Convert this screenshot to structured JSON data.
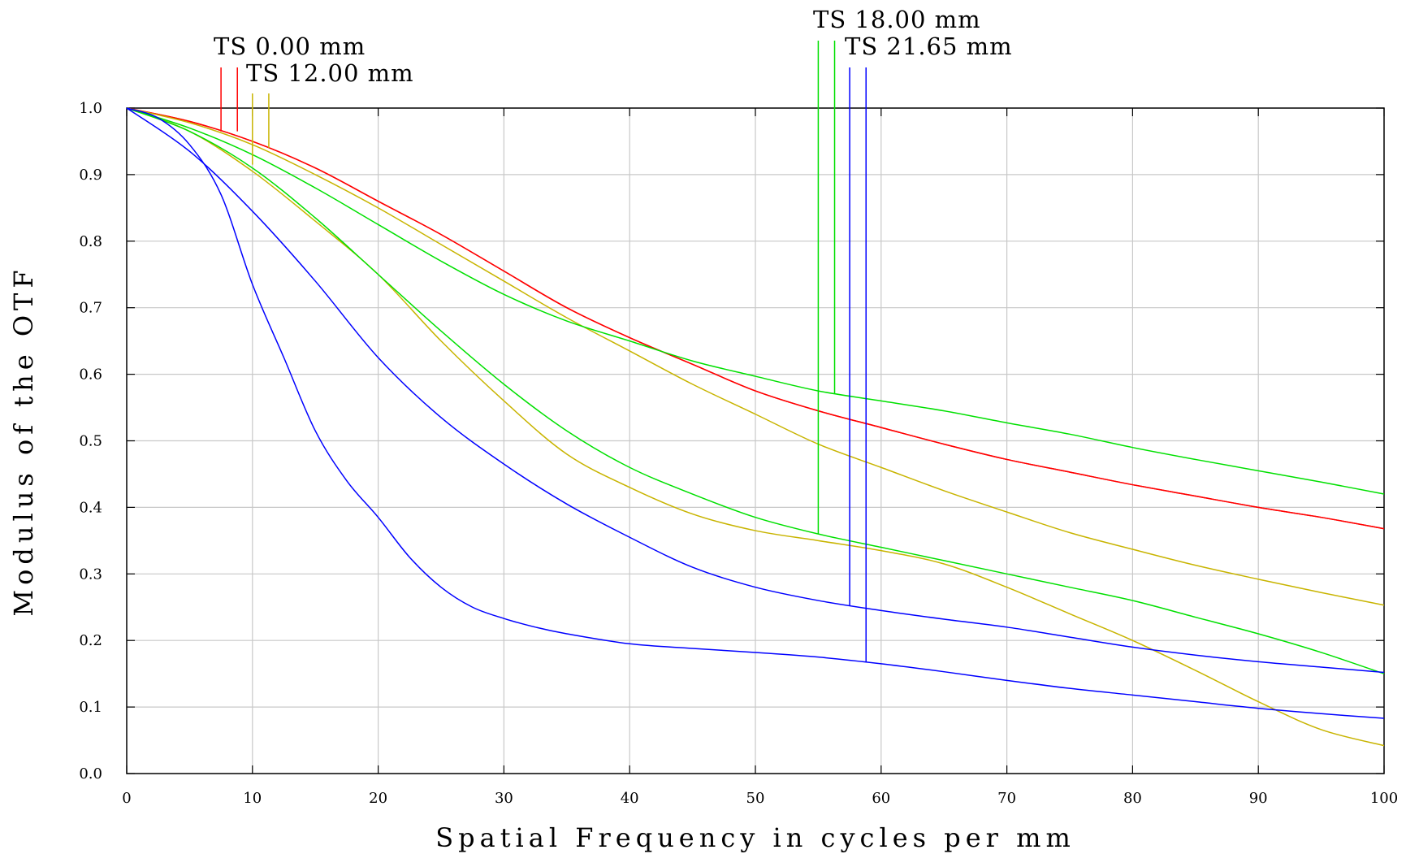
{
  "chart_data": {
    "type": "line",
    "title": "",
    "xlabel": "Spatial Frequency in cycles per mm",
    "ylabel": "Modulus of the OTF",
    "xlim": [
      0,
      100
    ],
    "ylim": [
      0,
      1
    ],
    "grid": true,
    "x_ticks": [
      "0",
      "10",
      "20",
      "30",
      "40",
      "50",
      "60",
      "70",
      "80",
      "90",
      "100"
    ],
    "y_ticks": [
      "0.0",
      "0.1",
      "0.2",
      "0.3",
      "0.4",
      "0.5",
      "0.6",
      "0.7",
      "0.8",
      "0.9",
      "1.0"
    ],
    "field_labels": [
      {
        "text": "TS 0.00 mm",
        "color": "#ff0000"
      },
      {
        "text": "TS 12.00 mm",
        "color": "#c8b400"
      },
      {
        "text": "TS 18.00 mm",
        "color": "#00e000"
      },
      {
        "text": "TS 21.65 mm",
        "color": "#0000ff"
      }
    ],
    "series": [
      {
        "field": "TS 0.00 mm",
        "orientation": "T",
        "color": "#ff0000",
        "x": [
          0,
          5,
          10,
          15,
          20,
          25,
          30,
          35,
          40,
          45,
          50,
          55,
          60,
          65,
          70,
          75,
          80,
          85,
          90,
          95,
          100
        ],
        "y": [
          1.0,
          0.98,
          0.95,
          0.91,
          0.86,
          0.81,
          0.755,
          0.7,
          0.655,
          0.615,
          0.575,
          0.545,
          0.52,
          0.495,
          0.472,
          0.453,
          0.434,
          0.417,
          0.4,
          0.385,
          0.368
        ]
      },
      {
        "field": "TS 0.00 mm",
        "orientation": "S",
        "color": "#ff0000",
        "x": [
          0,
          5,
          10,
          15,
          20,
          25,
          30,
          35,
          40,
          45,
          50,
          55,
          60,
          65,
          70,
          75,
          80,
          85,
          90,
          95,
          100
        ],
        "y": [
          1.0,
          0.98,
          0.95,
          0.91,
          0.86,
          0.81,
          0.755,
          0.7,
          0.655,
          0.615,
          0.575,
          0.545,
          0.52,
          0.495,
          0.472,
          0.453,
          0.434,
          0.417,
          0.4,
          0.385,
          0.368
        ]
      },
      {
        "field": "TS 12.00 mm",
        "orientation": "T",
        "color": "#c8b400",
        "x": [
          0,
          5,
          10,
          15,
          20,
          25,
          30,
          35,
          40,
          45,
          50,
          55,
          60,
          65,
          70,
          75,
          80,
          85,
          90,
          95,
          100
        ],
        "y": [
          1.0,
          0.978,
          0.945,
          0.9,
          0.85,
          0.795,
          0.74,
          0.685,
          0.635,
          0.585,
          0.54,
          0.495,
          0.46,
          0.425,
          0.393,
          0.362,
          0.337,
          0.313,
          0.292,
          0.272,
          0.253
        ]
      },
      {
        "field": "TS 12.00 mm",
        "orientation": "S",
        "color": "#c8b400",
        "x": [
          0,
          5,
          10,
          15,
          20,
          25,
          30,
          35,
          40,
          45,
          50,
          55,
          60,
          65,
          70,
          75,
          80,
          85,
          90,
          95,
          100
        ],
        "y": [
          1.0,
          0.965,
          0.905,
          0.83,
          0.75,
          0.65,
          0.56,
          0.48,
          0.43,
          0.39,
          0.365,
          0.35,
          0.335,
          0.315,
          0.28,
          0.24,
          0.2,
          0.155,
          0.108,
          0.066,
          0.042
        ]
      },
      {
        "field": "TS 18.00 mm",
        "orientation": "T",
        "color": "#00e000",
        "x": [
          0,
          5,
          10,
          15,
          20,
          25,
          30,
          35,
          40,
          45,
          50,
          55,
          60,
          65,
          70,
          75,
          80,
          85,
          90,
          95,
          100
        ],
        "y": [
          1.0,
          0.97,
          0.93,
          0.88,
          0.825,
          0.77,
          0.72,
          0.68,
          0.65,
          0.62,
          0.597,
          0.575,
          0.56,
          0.545,
          0.527,
          0.51,
          0.49,
          0.472,
          0.455,
          0.438,
          0.42
        ]
      },
      {
        "field": "TS 18.00 mm",
        "orientation": "S",
        "color": "#00e000",
        "x": [
          0,
          5,
          10,
          15,
          20,
          25,
          30,
          35,
          40,
          45,
          50,
          55,
          60,
          65,
          70,
          75,
          80,
          85,
          90,
          95,
          100
        ],
        "y": [
          1.0,
          0.965,
          0.91,
          0.835,
          0.75,
          0.665,
          0.585,
          0.515,
          0.46,
          0.42,
          0.385,
          0.36,
          0.34,
          0.32,
          0.3,
          0.28,
          0.26,
          0.235,
          0.21,
          0.182,
          0.15
        ]
      },
      {
        "field": "TS 21.65 mm",
        "orientation": "T",
        "color": "#0000ff",
        "x": [
          0,
          2.5,
          5,
          7.5,
          10,
          12.5,
          15,
          17.5,
          20,
          22.5,
          25,
          27.5,
          30,
          32.5,
          35,
          40,
          45,
          50,
          55,
          60,
          65,
          70,
          75,
          80,
          85,
          90,
          95,
          100
        ],
        "y": [
          1.0,
          0.985,
          0.945,
          0.87,
          0.735,
          0.625,
          0.515,
          0.44,
          0.385,
          0.325,
          0.28,
          0.25,
          0.233,
          0.22,
          0.21,
          0.195,
          0.188,
          0.182,
          0.175,
          0.165,
          0.153,
          0.14,
          0.128,
          0.118,
          0.108,
          0.098,
          0.09,
          0.083
        ]
      },
      {
        "field": "TS 21.65 mm",
        "orientation": "S",
        "color": "#0000ff",
        "x": [
          0,
          5,
          10,
          15,
          20,
          25,
          30,
          35,
          40,
          45,
          50,
          55,
          60,
          65,
          70,
          75,
          80,
          85,
          90,
          95,
          100
        ],
        "y": [
          1.0,
          0.935,
          0.845,
          0.74,
          0.625,
          0.535,
          0.465,
          0.405,
          0.355,
          0.31,
          0.28,
          0.26,
          0.245,
          0.232,
          0.22,
          0.205,
          0.19,
          0.178,
          0.168,
          0.16,
          0.152
        ]
      }
    ]
  }
}
